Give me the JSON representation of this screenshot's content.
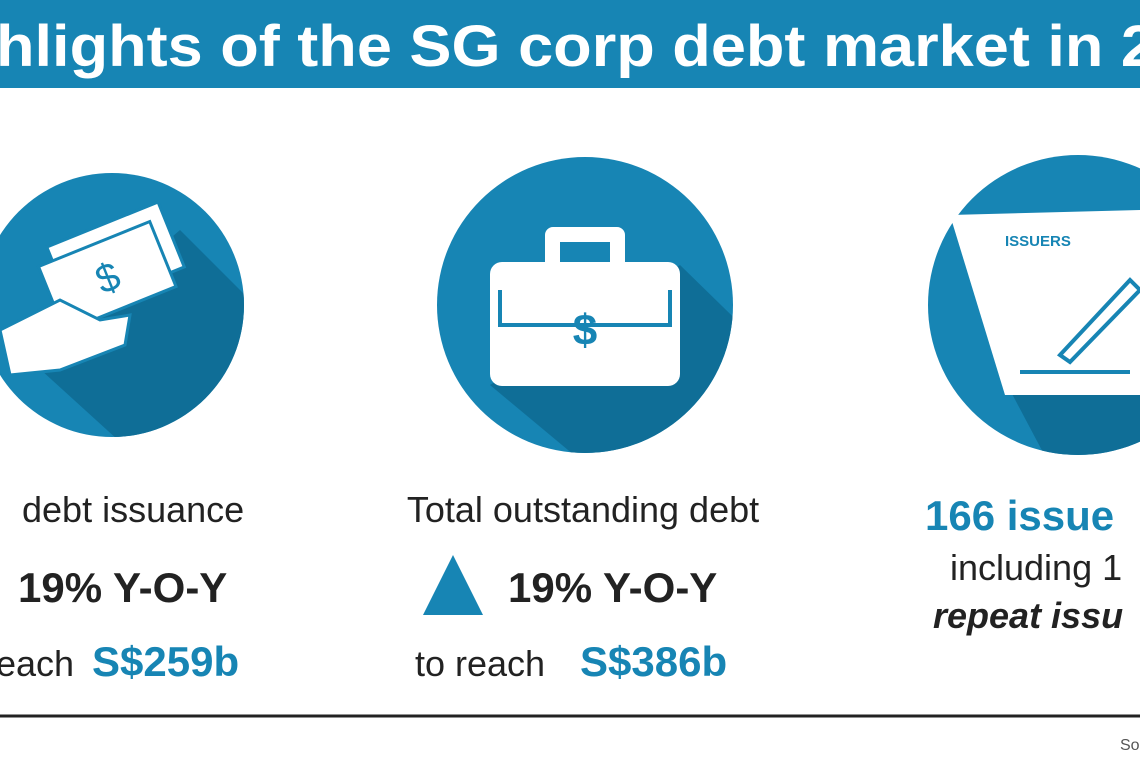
{
  "header": {
    "title": "hlights of the SG corp debt market in 2"
  },
  "panels": [
    {
      "description": "debt issuance",
      "change": "19% Y-O-Y",
      "prefix": "each",
      "amount": "S$259b"
    },
    {
      "description": "Total outstanding debt",
      "change": "19% Y-O-Y",
      "prefix": "to reach",
      "amount": "S$386b"
    },
    {
      "icon_label": "ISSUERS",
      "headline": "166 issue",
      "detail": "including 1",
      "emphasis": "repeat issu"
    }
  ],
  "footer": {
    "source": "So"
  }
}
